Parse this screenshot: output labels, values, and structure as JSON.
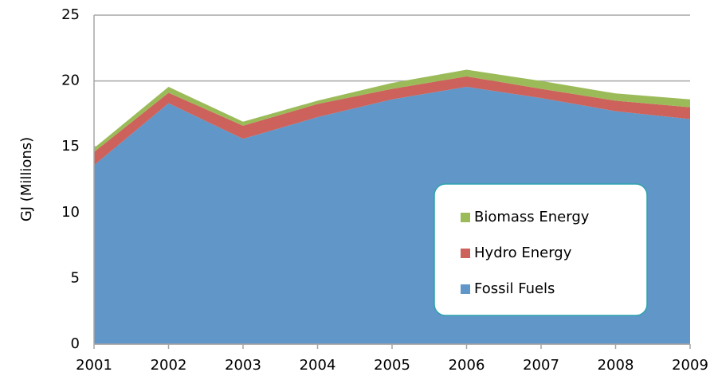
{
  "chart_data": {
    "type": "stacked-area",
    "y_label": "GJ (Millions)",
    "x": [
      2001,
      2002,
      2003,
      2004,
      2005,
      2006,
      2007,
      2008,
      2009
    ],
    "xlim": [
      2001,
      2009
    ],
    "xticks": [
      2001,
      2002,
      2003,
      2004,
      2005,
      2006,
      2007,
      2008,
      2009
    ],
    "ylim": [
      0,
      25
    ],
    "yticks": [
      0,
      5,
      10,
      15,
      20,
      25
    ],
    "grid": true,
    "legend": "lower right",
    "series": [
      {
        "name": "Fossil Fuels",
        "color": "#6096c8",
        "values": [
          13.6,
          18.3,
          15.6,
          17.25,
          18.6,
          19.55,
          18.7,
          17.7,
          17.1
        ]
      },
      {
        "name": "Hydro Energy",
        "color": "#cc625b",
        "values": [
          1.0,
          0.8,
          1.0,
          1.0,
          0.8,
          0.8,
          0.7,
          0.8,
          0.9
        ]
      },
      {
        "name": "Biomass Energy",
        "color": "#9bbb59",
        "values": [
          0.3,
          0.45,
          0.3,
          0.25,
          0.45,
          0.5,
          0.6,
          0.55,
          0.6
        ]
      }
    ]
  }
}
